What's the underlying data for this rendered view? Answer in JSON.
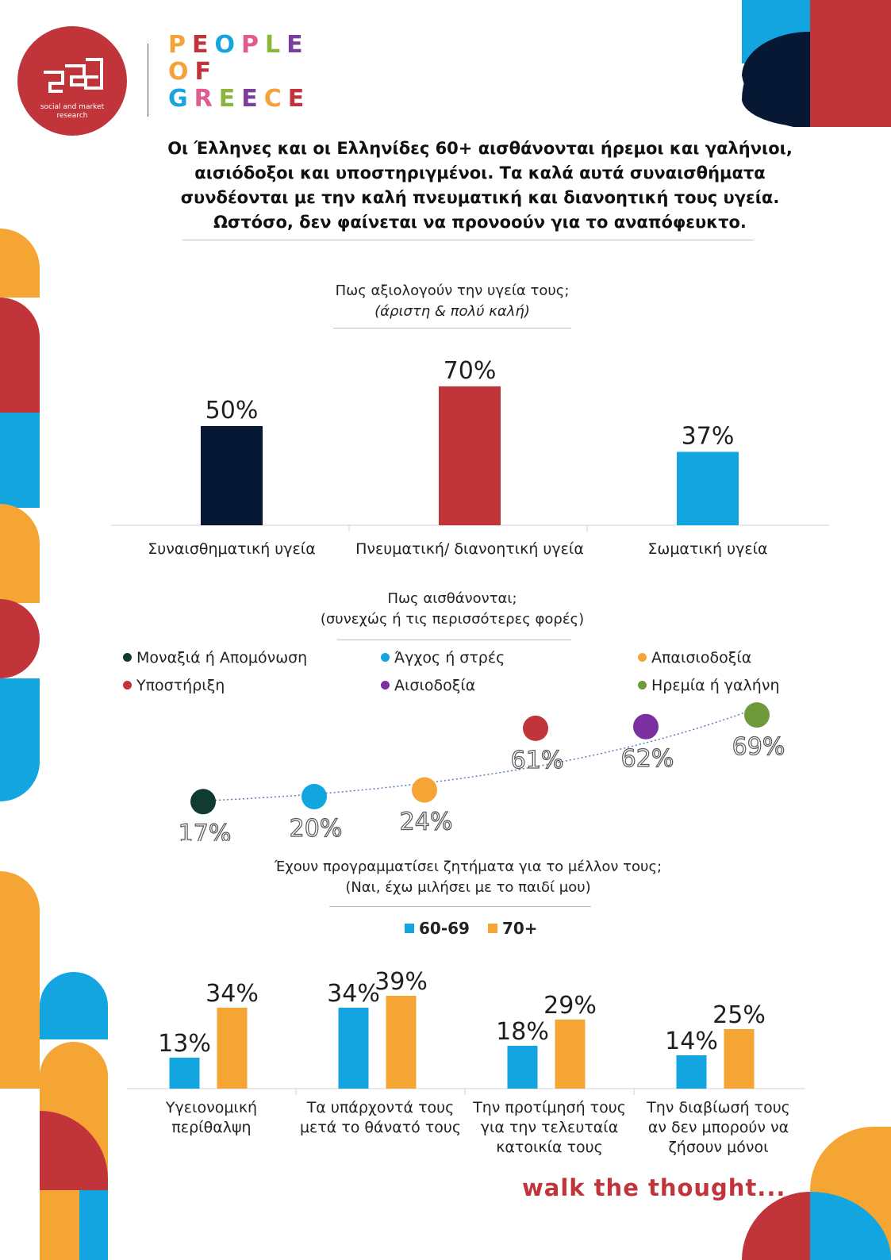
{
  "logo": {
    "subtitle_line1": "social and market",
    "subtitle_line2": "research",
    "brand_word1": "PEOPLE",
    "brand_word2": "OF",
    "brand_word3": "GREECE",
    "brand_colors": [
      "#f4a33a",
      "#c0343a",
      "#18a4df",
      "#e15b8f",
      "#8bb63a",
      "#7a3f9d"
    ]
  },
  "headline": {
    "line1": "Οι Έλληνες και οι Ελληνίδες 60+ αισθάνονται ήρεμοι και γαλήνιοι,",
    "line2": "αισιόδοξοι και υποστηριγμένοι. Τα καλά αυτά συναισθήματα",
    "line3": "συνδέονται με την καλή πνευματική και διανοητική τους υγεία.",
    "line4": "Ωστόσο, δεν φαίνεται να προνοούν για το αναπόφευκτο."
  },
  "footer": {
    "tagline": "walk the thought..."
  },
  "colors": {
    "navy": "#061833",
    "red": "#c0343a",
    "blue": "#12a5df",
    "orange": "#f5a533",
    "purple": "#7b2fa0",
    "green": "#6f9a3b",
    "darkgreen": "#0f3b33"
  },
  "chart_data": [
    {
      "type": "bar",
      "title": "Πως αξιολογούν την υγεία τους;",
      "subtitle": "(άριστη & πολύ καλή)",
      "categories": [
        "Συναισθηματική υγεία",
        "Πνευματική/ διανοητική υγεία",
        "Σωματική υγεία"
      ],
      "values": [
        50,
        70,
        37
      ],
      "labels": [
        "50%",
        "70%",
        "37%"
      ],
      "colors": [
        "#061833",
        "#c0343a",
        "#12a5df"
      ],
      "ylim": [
        0,
        100
      ]
    },
    {
      "type": "scatter",
      "title": "Πως αισθάνονται;",
      "subtitle": "(συνεχώς ή τις περισσότερες φορές)",
      "series": [
        {
          "name": "Μοναξιά ή Απομόνωση",
          "value": 17,
          "label": "17%",
          "color": "#0f3b33"
        },
        {
          "name": "Άγχος ή στρές",
          "value": 20,
          "label": "20%",
          "color": "#12a5df"
        },
        {
          "name": "Απαισιοδοξία",
          "value": 24,
          "label": "24%",
          "color": "#f5a533"
        },
        {
          "name": "Υποστήριξη",
          "value": 61,
          "label": "61%",
          "color": "#c0343a"
        },
        {
          "name": "Αισιοδοξία",
          "value": 62,
          "label": "62%",
          "color": "#7b2fa0"
        },
        {
          "name": "Ηρεμία ή γαλήνη",
          "value": 69,
          "label": "69%",
          "color": "#6f9a3b"
        }
      ],
      "trendline": "dotted"
    },
    {
      "type": "bar",
      "title": "Έχουν προγραμματίσει ζητήματα για το μέλλον τους;",
      "subtitle": "(Ναι, έχω μιλήσει με το παιδί μου)",
      "categories": [
        [
          "Υγειονομική",
          "περίθαλψη"
        ],
        [
          "Τα υπάρχοντά τους",
          "μετά το θάνατό τους"
        ],
        [
          "Την προτίμησή τους",
          "για την τελευταία",
          "κατοικία τους"
        ],
        [
          "Την διαβίωσή τους",
          "αν δεν μπορούν να",
          "ζήσουν μόνοι"
        ]
      ],
      "series": [
        {
          "name": "60-69",
          "values": [
            13,
            34,
            18,
            14
          ],
          "labels": [
            "13%",
            "34%",
            "18%",
            "14%"
          ],
          "color": "#12a5df"
        },
        {
          "name": "70+",
          "values": [
            34,
            39,
            29,
            25
          ],
          "labels": [
            "34%",
            "39%",
            "29%",
            "25%"
          ],
          "color": "#f5a533"
        }
      ],
      "ylim": [
        0,
        100
      ]
    }
  ]
}
